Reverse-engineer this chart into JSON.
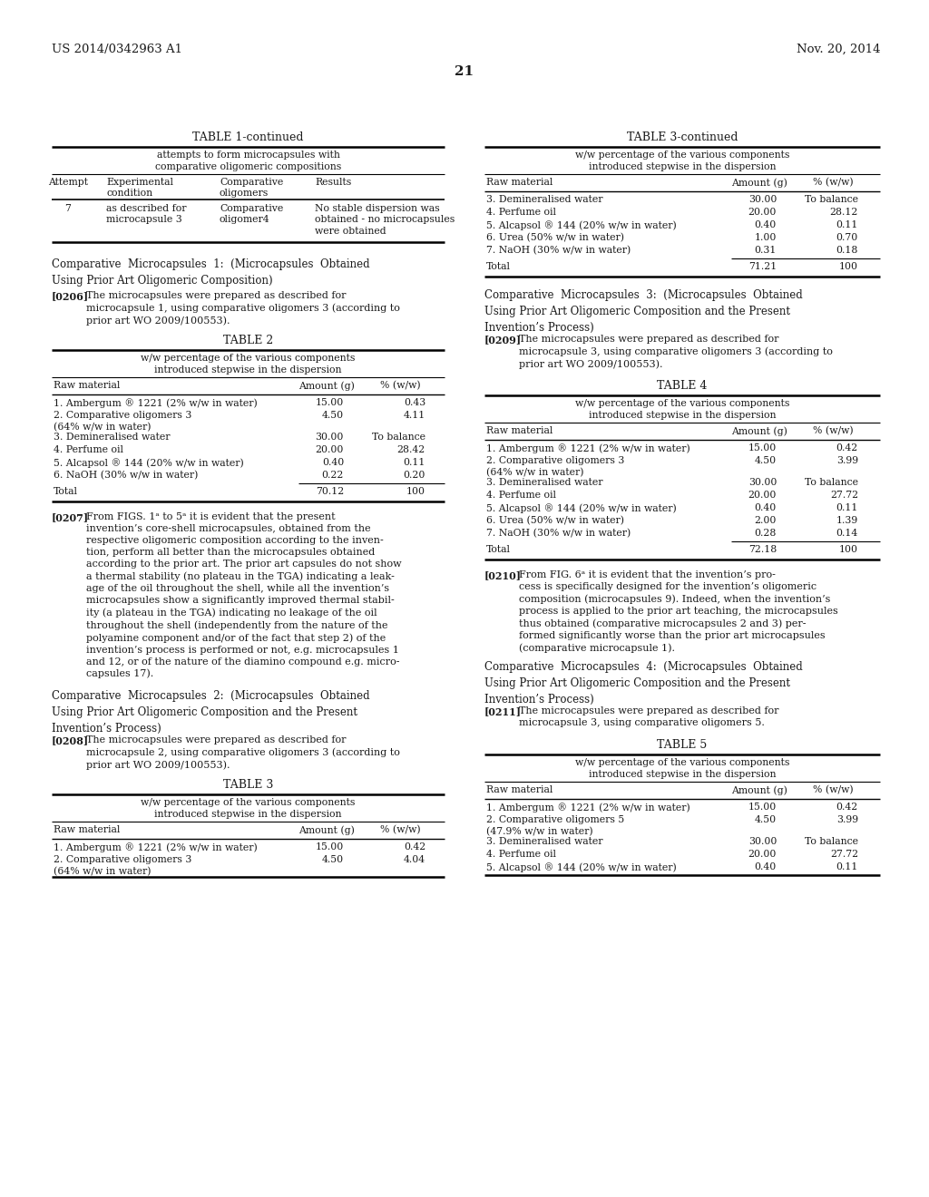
{
  "bg_color": "#ffffff",
  "header_left": "US 2014/0342963 A1",
  "header_right": "Nov. 20, 2014",
  "page_number": "21"
}
